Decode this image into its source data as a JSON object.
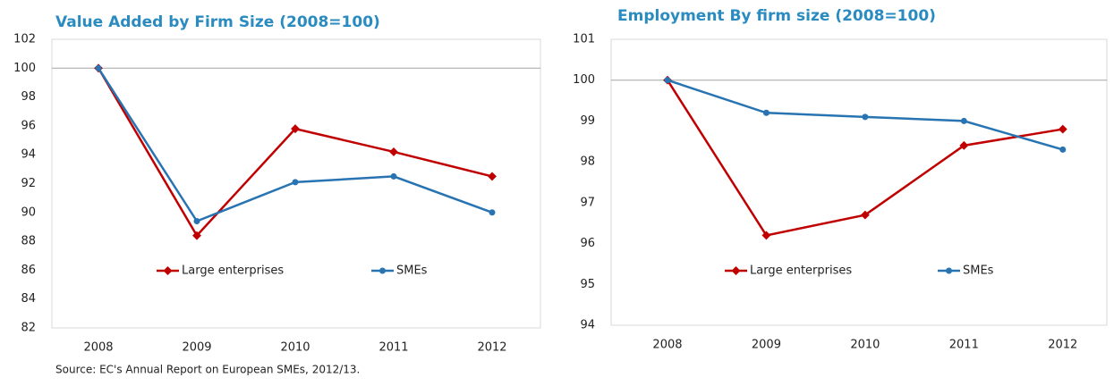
{
  "chart_data": [
    {
      "type": "line",
      "title": "Value Added by Firm Size (2008=100)",
      "categories": [
        "2008",
        "2009",
        "2010",
        "2011",
        "2012"
      ],
      "series": [
        {
          "name": "Large enterprises",
          "color": "#c00000",
          "values": [
            100,
            88.4,
            95.8,
            94.2,
            92.5
          ]
        },
        {
          "name": "SMEs",
          "color": "#2874b2",
          "values": [
            100,
            89.4,
            92.1,
            92.5,
            90.0
          ]
        }
      ],
      "ylim": [
        82,
        102
      ],
      "yticks": [
        82,
        84,
        86,
        88,
        90,
        92,
        94,
        96,
        98,
        100,
        102
      ],
      "reference_line": 100,
      "source": "Source: EC's Annual Report on European SMEs, 2012/13."
    },
    {
      "type": "line",
      "title": "Employment By firm size (2008=100)",
      "categories": [
        "2008",
        "2009",
        "2010",
        "2011",
        "2012"
      ],
      "series": [
        {
          "name": "Large enterprises",
          "color": "#c00000",
          "values": [
            100,
            96.2,
            96.7,
            98.4,
            98.8
          ]
        },
        {
          "name": "SMEs",
          "color": "#2874b2",
          "values": [
            100,
            99.2,
            99.1,
            99.0,
            98.3
          ]
        }
      ],
      "ylim": [
        94,
        101
      ],
      "yticks": [
        94,
        95,
        96,
        97,
        98,
        99,
        100,
        101
      ],
      "reference_line": 100
    }
  ]
}
